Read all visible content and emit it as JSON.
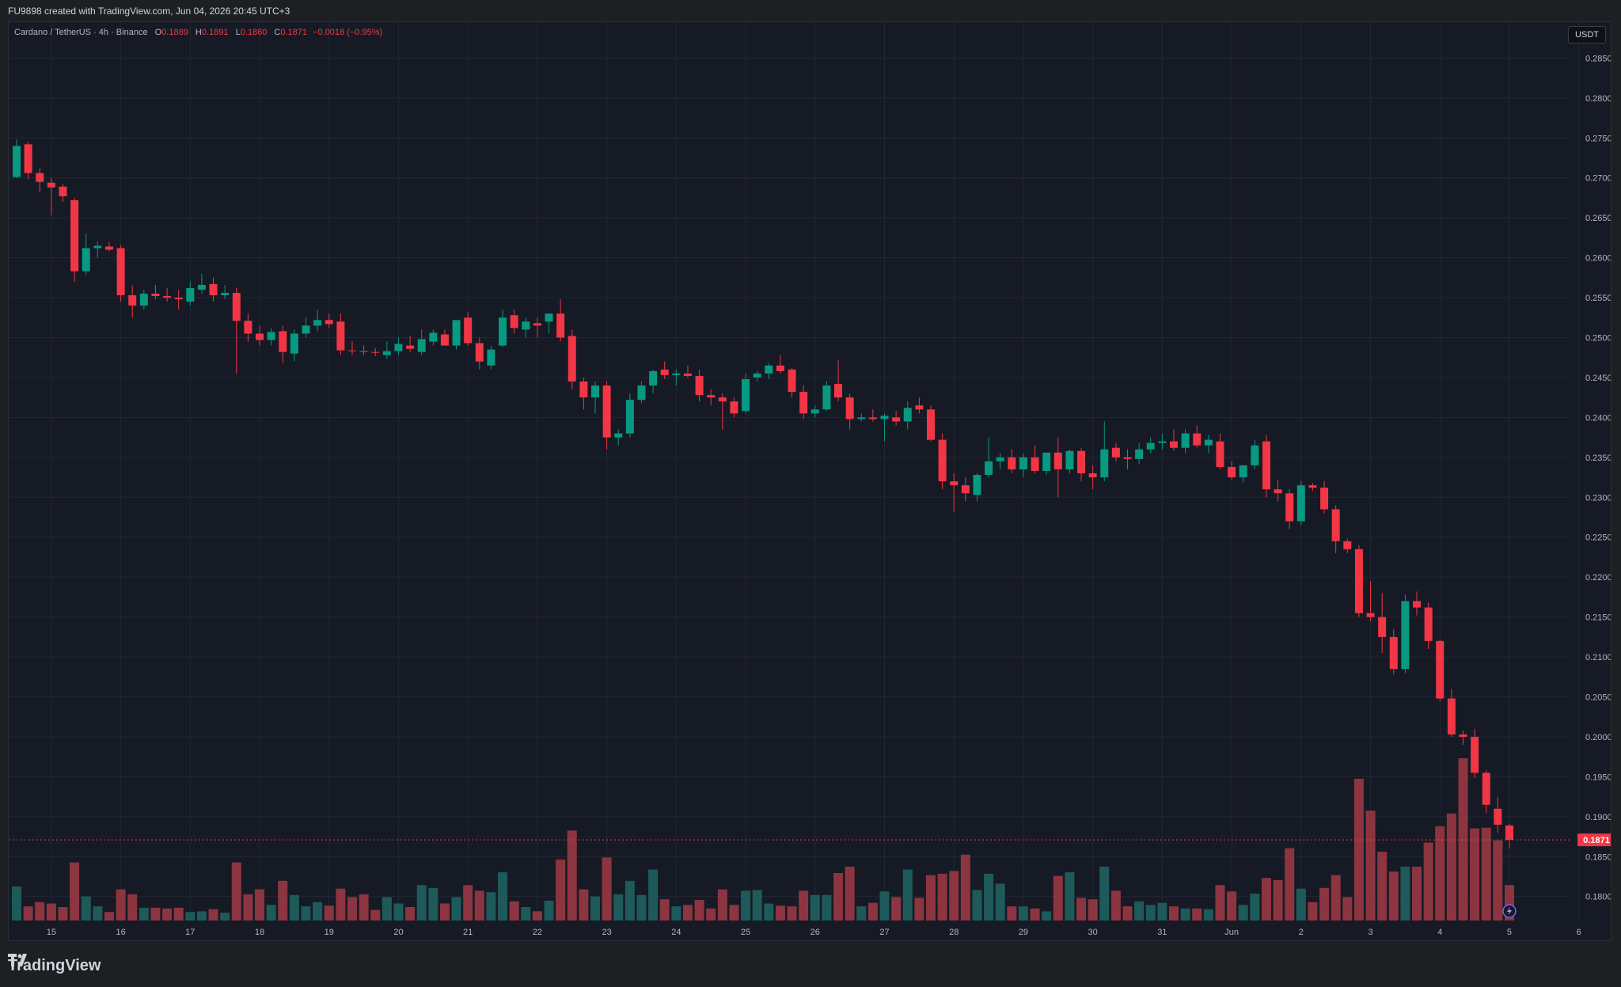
{
  "header": {
    "credit": "FU9898 created with TradingView.com, Jun 04, 2026 20:45 UTC+3"
  },
  "legend": {
    "symbol": "Cardano / TetherUS · 4h · Binance",
    "o_label": "O",
    "o_value": "0.1889",
    "h_label": "H",
    "h_value": "0.1891",
    "l_label": "L",
    "l_value": "0.1860",
    "c_label": "C",
    "c_value": "0.1871",
    "change": "−0.0018 (−0.95%)"
  },
  "unit_badge": "USDT",
  "current_price_label": "0.1871",
  "footer": {
    "brand": "TradingView"
  },
  "colors": {
    "up": "#089981",
    "down": "#f23645",
    "up_vol": "#1e5a5a",
    "down_vol": "#8c3540",
    "background": "#161a25",
    "grid": "#232734"
  },
  "chart_data": {
    "type": "candlestick",
    "title": "Cardano / TetherUS · 4h · Binance",
    "y_ticks": [
      0.18,
      0.185,
      0.19,
      0.195,
      0.2,
      0.205,
      0.21,
      0.215,
      0.22,
      0.225,
      0.23,
      0.235,
      0.24,
      0.245,
      0.25,
      0.255,
      0.26,
      0.265,
      0.27,
      0.275,
      0.28,
      0.285
    ],
    "ylim": [
      0.177,
      0.2895
    ],
    "x_ticks": [
      "15",
      "16",
      "17",
      "18",
      "19",
      "20",
      "21",
      "22",
      "23",
      "24",
      "25",
      "26",
      "27",
      "28",
      "29",
      "30",
      "31",
      "Jun",
      "2",
      "3",
      "4",
      "5",
      "6"
    ],
    "current_price": 0.1871,
    "candles": [
      {
        "o": 0.2701,
        "h": 0.2748,
        "l": 0.27,
        "c": 0.274,
        "v": 48
      },
      {
        "o": 0.2742,
        "h": 0.2745,
        "l": 0.2698,
        "c": 0.2706,
        "v": 20
      },
      {
        "o": 0.2706,
        "h": 0.2712,
        "l": 0.2682,
        "c": 0.2695,
        "v": 26
      },
      {
        "o": 0.2694,
        "h": 0.27,
        "l": 0.2653,
        "c": 0.2688,
        "v": 24
      },
      {
        "o": 0.2689,
        "h": 0.2692,
        "l": 0.267,
        "c": 0.2677,
        "v": 19
      },
      {
        "o": 0.2672,
        "h": 0.2675,
        "l": 0.257,
        "c": 0.2583,
        "v": 82
      },
      {
        "o": 0.2583,
        "h": 0.263,
        "l": 0.2578,
        "c": 0.2612,
        "v": 34
      },
      {
        "o": 0.2612,
        "h": 0.262,
        "l": 0.26,
        "c": 0.2615,
        "v": 20
      },
      {
        "o": 0.2614,
        "h": 0.262,
        "l": 0.2608,
        "c": 0.261,
        "v": 12
      },
      {
        "o": 0.2612,
        "h": 0.2616,
        "l": 0.2545,
        "c": 0.2553,
        "v": 44
      },
      {
        "o": 0.2553,
        "h": 0.2565,
        "l": 0.2525,
        "c": 0.254,
        "v": 37
      },
      {
        "o": 0.254,
        "h": 0.256,
        "l": 0.2535,
        "c": 0.2555,
        "v": 18
      },
      {
        "o": 0.2555,
        "h": 0.2566,
        "l": 0.2548,
        "c": 0.2552,
        "v": 18
      },
      {
        "o": 0.2552,
        "h": 0.2562,
        "l": 0.2545,
        "c": 0.255,
        "v": 17
      },
      {
        "o": 0.255,
        "h": 0.256,
        "l": 0.2535,
        "c": 0.2548,
        "v": 18
      },
      {
        "o": 0.2545,
        "h": 0.257,
        "l": 0.254,
        "c": 0.2562,
        "v": 12
      },
      {
        "o": 0.256,
        "h": 0.258,
        "l": 0.2555,
        "c": 0.2566,
        "v": 13
      },
      {
        "o": 0.2567,
        "h": 0.2575,
        "l": 0.2545,
        "c": 0.2553,
        "v": 16
      },
      {
        "o": 0.2553,
        "h": 0.2566,
        "l": 0.2548,
        "c": 0.2556,
        "v": 11
      },
      {
        "o": 0.2556,
        "h": 0.2562,
        "l": 0.2455,
        "c": 0.2521,
        "v": 82
      },
      {
        "o": 0.2521,
        "h": 0.253,
        "l": 0.2495,
        "c": 0.2505,
        "v": 37
      },
      {
        "o": 0.2505,
        "h": 0.2515,
        "l": 0.249,
        "c": 0.2497,
        "v": 44
      },
      {
        "o": 0.2497,
        "h": 0.2512,
        "l": 0.249,
        "c": 0.2507,
        "v": 22
      },
      {
        "o": 0.2508,
        "h": 0.2515,
        "l": 0.2468,
        "c": 0.2482,
        "v": 56
      },
      {
        "o": 0.248,
        "h": 0.251,
        "l": 0.247,
        "c": 0.2505,
        "v": 36
      },
      {
        "o": 0.2505,
        "h": 0.2525,
        "l": 0.25,
        "c": 0.2515,
        "v": 20
      },
      {
        "o": 0.2515,
        "h": 0.2535,
        "l": 0.2508,
        "c": 0.2522,
        "v": 26
      },
      {
        "o": 0.2522,
        "h": 0.253,
        "l": 0.2512,
        "c": 0.2517,
        "v": 21
      },
      {
        "o": 0.252,
        "h": 0.253,
        "l": 0.2478,
        "c": 0.2484,
        "v": 45
      },
      {
        "o": 0.2484,
        "h": 0.2495,
        "l": 0.2478,
        "c": 0.2483,
        "v": 33
      },
      {
        "o": 0.2483,
        "h": 0.249,
        "l": 0.2478,
        "c": 0.2482,
        "v": 37
      },
      {
        "o": 0.2482,
        "h": 0.2487,
        "l": 0.2477,
        "c": 0.2481,
        "v": 15
      },
      {
        "o": 0.2478,
        "h": 0.2495,
        "l": 0.2473,
        "c": 0.2483,
        "v": 33
      },
      {
        "o": 0.2483,
        "h": 0.25,
        "l": 0.2478,
        "c": 0.2492,
        "v": 24
      },
      {
        "o": 0.249,
        "h": 0.2502,
        "l": 0.2482,
        "c": 0.2486,
        "v": 19
      },
      {
        "o": 0.2482,
        "h": 0.251,
        "l": 0.2478,
        "c": 0.2498,
        "v": 50
      },
      {
        "o": 0.2495,
        "h": 0.251,
        "l": 0.249,
        "c": 0.2506,
        "v": 46
      },
      {
        "o": 0.2504,
        "h": 0.251,
        "l": 0.2496,
        "c": 0.249,
        "v": 24
      },
      {
        "o": 0.249,
        "h": 0.2515,
        "l": 0.2485,
        "c": 0.2522,
        "v": 33
      },
      {
        "o": 0.2525,
        "h": 0.2532,
        "l": 0.249,
        "c": 0.2493,
        "v": 50
      },
      {
        "o": 0.2493,
        "h": 0.25,
        "l": 0.246,
        "c": 0.247,
        "v": 42
      },
      {
        "o": 0.2465,
        "h": 0.249,
        "l": 0.246,
        "c": 0.2485,
        "v": 40
      },
      {
        "o": 0.249,
        "h": 0.2535,
        "l": 0.2488,
        "c": 0.2525,
        "v": 68
      },
      {
        "o": 0.2528,
        "h": 0.2535,
        "l": 0.2505,
        "c": 0.2512,
        "v": 27
      },
      {
        "o": 0.251,
        "h": 0.2525,
        "l": 0.25,
        "c": 0.252,
        "v": 19
      },
      {
        "o": 0.2518,
        "h": 0.2525,
        "l": 0.25,
        "c": 0.2515,
        "v": 13
      },
      {
        "o": 0.252,
        "h": 0.253,
        "l": 0.2505,
        "c": 0.253,
        "v": 28
      },
      {
        "o": 0.253,
        "h": 0.2548,
        "l": 0.2495,
        "c": 0.25,
        "v": 86
      },
      {
        "o": 0.2502,
        "h": 0.251,
        "l": 0.2435,
        "c": 0.2445,
        "v": 127
      },
      {
        "o": 0.2445,
        "h": 0.245,
        "l": 0.241,
        "c": 0.2425,
        "v": 44
      },
      {
        "o": 0.2425,
        "h": 0.2445,
        "l": 0.2405,
        "c": 0.244,
        "v": 34
      },
      {
        "o": 0.244,
        "h": 0.2445,
        "l": 0.236,
        "c": 0.2375,
        "v": 89
      },
      {
        "o": 0.2375,
        "h": 0.2385,
        "l": 0.2365,
        "c": 0.238,
        "v": 37
      },
      {
        "o": 0.238,
        "h": 0.243,
        "l": 0.2375,
        "c": 0.2422,
        "v": 56
      },
      {
        "o": 0.2422,
        "h": 0.2445,
        "l": 0.2418,
        "c": 0.244,
        "v": 36
      },
      {
        "o": 0.244,
        "h": 0.246,
        "l": 0.243,
        "c": 0.2458,
        "v": 72
      },
      {
        "o": 0.246,
        "h": 0.247,
        "l": 0.2448,
        "c": 0.2453,
        "v": 30
      },
      {
        "o": 0.2453,
        "h": 0.246,
        "l": 0.244,
        "c": 0.2455,
        "v": 20
      },
      {
        "o": 0.2455,
        "h": 0.2465,
        "l": 0.245,
        "c": 0.2452,
        "v": 22
      },
      {
        "o": 0.2452,
        "h": 0.246,
        "l": 0.242,
        "c": 0.2428,
        "v": 29
      },
      {
        "o": 0.2428,
        "h": 0.2435,
        "l": 0.2415,
        "c": 0.2425,
        "v": 17
      },
      {
        "o": 0.2425,
        "h": 0.243,
        "l": 0.2385,
        "c": 0.242,
        "v": 44
      },
      {
        "o": 0.242,
        "h": 0.2425,
        "l": 0.24,
        "c": 0.2405,
        "v": 22
      },
      {
        "o": 0.2408,
        "h": 0.2455,
        "l": 0.2405,
        "c": 0.2448,
        "v": 42
      },
      {
        "o": 0.245,
        "h": 0.2458,
        "l": 0.2445,
        "c": 0.2455,
        "v": 43
      },
      {
        "o": 0.2455,
        "h": 0.2468,
        "l": 0.2448,
        "c": 0.2465,
        "v": 24
      },
      {
        "o": 0.2465,
        "h": 0.2478,
        "l": 0.2455,
        "c": 0.2458,
        "v": 21
      },
      {
        "o": 0.246,
        "h": 0.2462,
        "l": 0.2425,
        "c": 0.2432,
        "v": 20
      },
      {
        "o": 0.2432,
        "h": 0.244,
        "l": 0.2398,
        "c": 0.2405,
        "v": 42
      },
      {
        "o": 0.2405,
        "h": 0.2415,
        "l": 0.24,
        "c": 0.241,
        "v": 36
      },
      {
        "o": 0.241,
        "h": 0.2445,
        "l": 0.2408,
        "c": 0.244,
        "v": 36
      },
      {
        "o": 0.2442,
        "h": 0.2472,
        "l": 0.242,
        "c": 0.2425,
        "v": 67
      },
      {
        "o": 0.2425,
        "h": 0.243,
        "l": 0.2385,
        "c": 0.2398,
        "v": 76
      },
      {
        "o": 0.2398,
        "h": 0.2405,
        "l": 0.2395,
        "c": 0.24,
        "v": 20
      },
      {
        "o": 0.24,
        "h": 0.241,
        "l": 0.2395,
        "c": 0.2398,
        "v": 25
      },
      {
        "o": 0.2398,
        "h": 0.2405,
        "l": 0.237,
        "c": 0.2402,
        "v": 41
      },
      {
        "o": 0.24,
        "h": 0.2408,
        "l": 0.239,
        "c": 0.2395,
        "v": 33
      },
      {
        "o": 0.2395,
        "h": 0.242,
        "l": 0.2385,
        "c": 0.2412,
        "v": 72
      },
      {
        "o": 0.2415,
        "h": 0.2425,
        "l": 0.2405,
        "c": 0.241,
        "v": 32
      },
      {
        "o": 0.241,
        "h": 0.2415,
        "l": 0.237,
        "c": 0.2372,
        "v": 64
      },
      {
        "o": 0.2372,
        "h": 0.238,
        "l": 0.231,
        "c": 0.232,
        "v": 66
      },
      {
        "o": 0.232,
        "h": 0.233,
        "l": 0.2282,
        "c": 0.2315,
        "v": 70
      },
      {
        "o": 0.2315,
        "h": 0.2325,
        "l": 0.2295,
        "c": 0.2305,
        "v": 93
      },
      {
        "o": 0.2303,
        "h": 0.233,
        "l": 0.2295,
        "c": 0.2328,
        "v": 43
      },
      {
        "o": 0.2328,
        "h": 0.2375,
        "l": 0.2325,
        "c": 0.2345,
        "v": 66
      },
      {
        "o": 0.2345,
        "h": 0.2355,
        "l": 0.2335,
        "c": 0.235,
        "v": 52
      },
      {
        "o": 0.235,
        "h": 0.236,
        "l": 0.233,
        "c": 0.2335,
        "v": 20
      },
      {
        "o": 0.2335,
        "h": 0.2355,
        "l": 0.2325,
        "c": 0.235,
        "v": 20
      },
      {
        "o": 0.235,
        "h": 0.2365,
        "l": 0.233,
        "c": 0.2333,
        "v": 17
      },
      {
        "o": 0.2333,
        "h": 0.2355,
        "l": 0.2328,
        "c": 0.2356,
        "v": 13
      },
      {
        "o": 0.2356,
        "h": 0.2375,
        "l": 0.23,
        "c": 0.2335,
        "v": 63
      },
      {
        "o": 0.2335,
        "h": 0.236,
        "l": 0.233,
        "c": 0.2358,
        "v": 68
      },
      {
        "o": 0.2358,
        "h": 0.2362,
        "l": 0.232,
        "c": 0.233,
        "v": 32
      },
      {
        "o": 0.233,
        "h": 0.234,
        "l": 0.231,
        "c": 0.2325,
        "v": 30
      },
      {
        "o": 0.2325,
        "h": 0.2395,
        "l": 0.232,
        "c": 0.236,
        "v": 76
      },
      {
        "o": 0.2362,
        "h": 0.2368,
        "l": 0.2345,
        "c": 0.235,
        "v": 42
      },
      {
        "o": 0.235,
        "h": 0.236,
        "l": 0.2335,
        "c": 0.2348,
        "v": 20
      },
      {
        "o": 0.2348,
        "h": 0.2368,
        "l": 0.2342,
        "c": 0.236,
        "v": 27
      },
      {
        "o": 0.236,
        "h": 0.2375,
        "l": 0.2355,
        "c": 0.2368,
        "v": 22
      },
      {
        "o": 0.2368,
        "h": 0.238,
        "l": 0.236,
        "c": 0.237,
        "v": 25
      },
      {
        "o": 0.237,
        "h": 0.2385,
        "l": 0.2358,
        "c": 0.2362,
        "v": 20
      },
      {
        "o": 0.2362,
        "h": 0.2385,
        "l": 0.2355,
        "c": 0.238,
        "v": 17
      },
      {
        "o": 0.238,
        "h": 0.239,
        "l": 0.2362,
        "c": 0.2365,
        "v": 17
      },
      {
        "o": 0.2365,
        "h": 0.2378,
        "l": 0.2355,
        "c": 0.2372,
        "v": 16
      },
      {
        "o": 0.237,
        "h": 0.238,
        "l": 0.2335,
        "c": 0.2338,
        "v": 50
      },
      {
        "o": 0.2338,
        "h": 0.2345,
        "l": 0.2322,
        "c": 0.2325,
        "v": 41
      },
      {
        "o": 0.2325,
        "h": 0.234,
        "l": 0.2318,
        "c": 0.234,
        "v": 22
      },
      {
        "o": 0.234,
        "h": 0.2372,
        "l": 0.2335,
        "c": 0.2365,
        "v": 38
      },
      {
        "o": 0.237,
        "h": 0.2378,
        "l": 0.23,
        "c": 0.231,
        "v": 60
      },
      {
        "o": 0.231,
        "h": 0.2322,
        "l": 0.2295,
        "c": 0.2305,
        "v": 57
      },
      {
        "o": 0.2305,
        "h": 0.231,
        "l": 0.226,
        "c": 0.227,
        "v": 102
      },
      {
        "o": 0.227,
        "h": 0.232,
        "l": 0.2265,
        "c": 0.2315,
        "v": 45
      },
      {
        "o": 0.2315,
        "h": 0.2318,
        "l": 0.2308,
        "c": 0.2312,
        "v": 26
      },
      {
        "o": 0.2312,
        "h": 0.232,
        "l": 0.228,
        "c": 0.2285,
        "v": 46
      },
      {
        "o": 0.2285,
        "h": 0.229,
        "l": 0.223,
        "c": 0.2245,
        "v": 64
      },
      {
        "o": 0.2245,
        "h": 0.2248,
        "l": 0.223,
        "c": 0.2235,
        "v": 33
      },
      {
        "o": 0.2235,
        "h": 0.224,
        "l": 0.215,
        "c": 0.2155,
        "v": 200
      },
      {
        "o": 0.2155,
        "h": 0.2195,
        "l": 0.2145,
        "c": 0.215,
        "v": 155
      },
      {
        "o": 0.215,
        "h": 0.218,
        "l": 0.2105,
        "c": 0.2125,
        "v": 97
      },
      {
        "o": 0.2125,
        "h": 0.2135,
        "l": 0.2078,
        "c": 0.2085,
        "v": 69
      },
      {
        "o": 0.2085,
        "h": 0.2178,
        "l": 0.208,
        "c": 0.217,
        "v": 76
      },
      {
        "o": 0.217,
        "h": 0.2182,
        "l": 0.2152,
        "c": 0.2162,
        "v": 76
      },
      {
        "o": 0.2162,
        "h": 0.2168,
        "l": 0.211,
        "c": 0.212,
        "v": 110
      },
      {
        "o": 0.212,
        "h": 0.2122,
        "l": 0.2045,
        "c": 0.2048,
        "v": 133
      },
      {
        "o": 0.2048,
        "h": 0.206,
        "l": 0.2,
        "c": 0.2003,
        "v": 151
      },
      {
        "o": 0.2003,
        "h": 0.2008,
        "l": 0.199,
        "c": 0.2,
        "v": 229
      },
      {
        "o": 0.2,
        "h": 0.201,
        "l": 0.1948,
        "c": 0.1955,
        "v": 130
      },
      {
        "o": 0.1955,
        "h": 0.1958,
        "l": 0.1905,
        "c": 0.1915,
        "v": 131
      },
      {
        "o": 0.191,
        "h": 0.1925,
        "l": 0.188,
        "c": 0.189,
        "v": 113
      },
      {
        "o": 0.1889,
        "h": 0.1891,
        "l": 0.186,
        "c": 0.1871,
        "v": 50
      }
    ]
  }
}
